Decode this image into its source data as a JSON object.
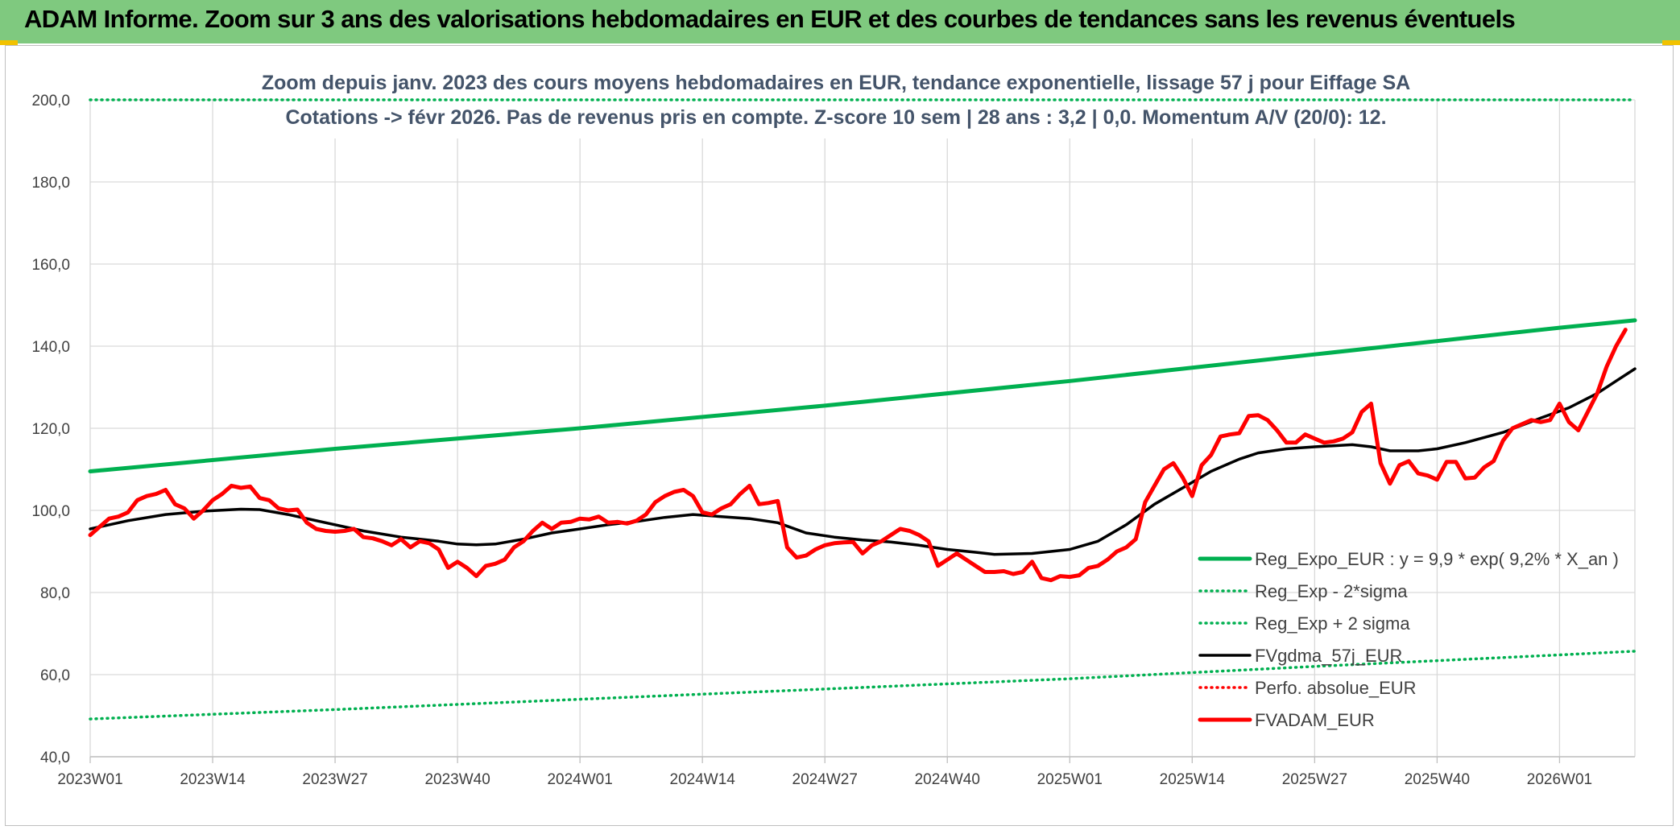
{
  "header": {
    "title": "ADAM Informe. Zoom sur 3 ans des valorisations hebdomadaires en EUR et des courbes de tendances sans les revenus éventuels"
  },
  "chart_data": {
    "type": "line",
    "subtitle_line1": "Zoom depuis janv. 2023 des cours moyens hebdomadaires en EUR, tendance exponentielle, lissage 57 j pour Eiffage SA",
    "subtitle_line2": "Cotations -> févr 2026. Pas de revenus pris en compte. Z-score 10 sem | 28 ans : 3,2 | 0,0. Momentum A/V (20/0): 12.",
    "ylim": [
      40,
      200
    ],
    "yticks": [
      "40,0",
      "60,0",
      "80,0",
      "100,0",
      "120,0",
      "140,0",
      "160,0",
      "180,0",
      "200,0"
    ],
    "x_start_week_index": 0,
    "x_end_week_index": 164,
    "xticks": [
      {
        "label": "2023W01",
        "week": 0
      },
      {
        "label": "2023W14",
        "week": 13
      },
      {
        "label": "2023W27",
        "week": 26
      },
      {
        "label": "2023W40",
        "week": 39
      },
      {
        "label": "2024W01",
        "week": 52
      },
      {
        "label": "2024W14",
        "week": 65
      },
      {
        "label": "2024W27",
        "week": 78
      },
      {
        "label": "2024W40",
        "week": 91
      },
      {
        "label": "2025W01",
        "week": 104
      },
      {
        "label": "2025W14",
        "week": 117
      },
      {
        "label": "2025W27",
        "week": 130
      },
      {
        "label": "2025W40",
        "week": 143
      },
      {
        "label": "2026W01",
        "week": 156
      }
    ],
    "legend_position": "bottom-right",
    "series": [
      {
        "name": "Reg_Expo_EUR : y = 9,9 * exp( 9,2% *  X_an )",
        "style": "solid-thick",
        "color": "#00b050",
        "points": [
          [
            0,
            109.5
          ],
          [
            26,
            115.0
          ],
          [
            52,
            120.0
          ],
          [
            78,
            125.5
          ],
          [
            104,
            131.5
          ],
          [
            130,
            138.0
          ],
          [
            156,
            144.5
          ],
          [
            164,
            146.3
          ]
        ]
      },
      {
        "name": "Reg_Exp - 2*sigma",
        "style": "dotted",
        "color": "#00b050",
        "points": [
          [
            0,
            49.2
          ],
          [
            26,
            51.5
          ],
          [
            52,
            54.0
          ],
          [
            78,
            56.5
          ],
          [
            104,
            59.0
          ],
          [
            130,
            62.0
          ],
          [
            156,
            64.8
          ],
          [
            164,
            65.7
          ]
        ]
      },
      {
        "name": "Reg_Exp + 2 sigma",
        "style": "dotted",
        "color": "#00b050",
        "points": [
          [
            0,
            200.0
          ],
          [
            164,
            200.0
          ]
        ]
      },
      {
        "name": "FVgdma_57j_EUR",
        "style": "solid",
        "color": "#000000",
        "points": [
          [
            0,
            95.5
          ],
          [
            4,
            97.5
          ],
          [
            8,
            99.0
          ],
          [
            12,
            99.8
          ],
          [
            16,
            100.3
          ],
          [
            18,
            100.2
          ],
          [
            21,
            99.0
          ],
          [
            25,
            97.0
          ],
          [
            29,
            95.0
          ],
          [
            33,
            93.5
          ],
          [
            37,
            92.5
          ],
          [
            39,
            91.8
          ],
          [
            41,
            91.6
          ],
          [
            43,
            91.8
          ],
          [
            46,
            93.0
          ],
          [
            49,
            94.5
          ],
          [
            52,
            95.5
          ],
          [
            55,
            96.5
          ],
          [
            58,
            97.3
          ],
          [
            61,
            98.3
          ],
          [
            64,
            99.0
          ],
          [
            67,
            98.5
          ],
          [
            70,
            98.0
          ],
          [
            73,
            97.0
          ],
          [
            76,
            94.5
          ],
          [
            79,
            93.5
          ],
          [
            82,
            92.8
          ],
          [
            85,
            92.3
          ],
          [
            88,
            91.5
          ],
          [
            91,
            90.5
          ],
          [
            94,
            89.8
          ],
          [
            96,
            89.3
          ],
          [
            100,
            89.5
          ],
          [
            104,
            90.5
          ],
          [
            107,
            92.5
          ],
          [
            110,
            96.5
          ],
          [
            113,
            101.5
          ],
          [
            116,
            105.5
          ],
          [
            119,
            109.5
          ],
          [
            122,
            112.5
          ],
          [
            124,
            114.0
          ],
          [
            127,
            115.0
          ],
          [
            130,
            115.5
          ],
          [
            134,
            116.0
          ],
          [
            136,
            115.5
          ],
          [
            138,
            114.5
          ],
          [
            141,
            114.5
          ],
          [
            143,
            115.0
          ],
          [
            146,
            116.5
          ],
          [
            150,
            119.0
          ],
          [
            154,
            122.5
          ],
          [
            157,
            125.0
          ],
          [
            160,
            128.5
          ],
          [
            162,
            131.5
          ],
          [
            164,
            134.5
          ]
        ]
      },
      {
        "name": "Perfo. absolue_EUR",
        "style": "dotted",
        "color": "#ff0000",
        "points": []
      },
      {
        "name": "FVADAM_EUR",
        "style": "solid-thick",
        "color": "#ff0000",
        "points": [
          [
            0,
            94.0
          ],
          [
            1,
            96.0
          ],
          [
            2,
            98.0
          ],
          [
            3,
            98.5
          ],
          [
            4,
            99.5
          ],
          [
            5,
            102.5
          ],
          [
            6,
            103.5
          ],
          [
            7,
            104.0
          ],
          [
            8,
            105.0
          ],
          [
            9,
            101.5
          ],
          [
            10,
            100.5
          ],
          [
            11,
            98.0
          ],
          [
            12,
            100.0
          ],
          [
            13,
            102.5
          ],
          [
            14,
            104.0
          ],
          [
            15,
            106.0
          ],
          [
            16,
            105.5
          ],
          [
            17,
            105.8
          ],
          [
            18,
            103.0
          ],
          [
            19,
            102.5
          ],
          [
            20,
            100.5
          ],
          [
            21,
            100.0
          ],
          [
            22,
            100.2
          ],
          [
            23,
            97.0
          ],
          [
            24,
            95.5
          ],
          [
            25,
            95.0
          ],
          [
            26,
            94.8
          ],
          [
            27,
            95.0
          ],
          [
            28,
            95.5
          ],
          [
            29,
            93.5
          ],
          [
            30,
            93.2
          ],
          [
            31,
            92.5
          ],
          [
            32,
            91.5
          ],
          [
            33,
            93.0
          ],
          [
            34,
            91.0
          ],
          [
            35,
            92.5
          ],
          [
            36,
            92.0
          ],
          [
            37,
            90.5
          ],
          [
            38,
            86.0
          ],
          [
            39,
            87.5
          ],
          [
            40,
            86.0
          ],
          [
            41,
            84.0
          ],
          [
            42,
            86.5
          ],
          [
            43,
            87.0
          ],
          [
            44,
            88.0
          ],
          [
            45,
            91.0
          ],
          [
            46,
            92.5
          ],
          [
            47,
            95.0
          ],
          [
            48,
            97.0
          ],
          [
            49,
            95.5
          ],
          [
            50,
            97.0
          ],
          [
            51,
            97.2
          ],
          [
            52,
            98.0
          ],
          [
            53,
            97.8
          ],
          [
            54,
            98.5
          ],
          [
            55,
            97.0
          ],
          [
            56,
            97.2
          ],
          [
            57,
            96.8
          ],
          [
            58,
            97.5
          ],
          [
            59,
            99.0
          ],
          [
            60,
            102.0
          ],
          [
            61,
            103.5
          ],
          [
            62,
            104.5
          ],
          [
            63,
            105.0
          ],
          [
            64,
            103.5
          ],
          [
            65,
            99.5
          ],
          [
            66,
            99.0
          ],
          [
            67,
            100.5
          ],
          [
            68,
            101.5
          ],
          [
            69,
            104.0
          ],
          [
            70,
            106.0
          ],
          [
            71,
            101.5
          ],
          [
            72,
            101.8
          ],
          [
            73,
            102.3
          ],
          [
            74,
            91.0
          ],
          [
            75,
            88.5
          ],
          [
            76,
            89.0
          ],
          [
            77,
            90.5
          ],
          [
            78,
            91.5
          ],
          [
            79,
            92.0
          ],
          [
            80,
            92.2
          ],
          [
            81,
            92.3
          ],
          [
            82,
            89.5
          ],
          [
            83,
            91.5
          ],
          [
            84,
            92.5
          ],
          [
            85,
            94.0
          ],
          [
            86,
            95.5
          ],
          [
            87,
            95.0
          ],
          [
            88,
            94.0
          ],
          [
            89,
            92.5
          ],
          [
            90,
            86.5
          ],
          [
            91,
            88.0
          ],
          [
            92,
            89.5
          ],
          [
            93,
            88.0
          ],
          [
            94,
            86.5
          ],
          [
            95,
            85.0
          ],
          [
            96,
            85.0
          ],
          [
            97,
            85.2
          ],
          [
            98,
            84.5
          ],
          [
            99,
            85.0
          ],
          [
            100,
            87.5
          ],
          [
            101,
            83.5
          ],
          [
            102,
            83.0
          ],
          [
            103,
            84.0
          ],
          [
            104,
            83.8
          ],
          [
            105,
            84.2
          ],
          [
            106,
            86.0
          ],
          [
            107,
            86.5
          ],
          [
            108,
            88.0
          ],
          [
            109,
            90.0
          ],
          [
            110,
            91.0
          ],
          [
            111,
            93.0
          ],
          [
            112,
            102.0
          ],
          [
            113,
            106.0
          ],
          [
            114,
            110.0
          ],
          [
            115,
            111.5
          ],
          [
            116,
            108.0
          ],
          [
            117,
            103.5
          ],
          [
            118,
            111.0
          ],
          [
            119,
            113.5
          ],
          [
            120,
            118.0
          ],
          [
            121,
            118.5
          ],
          [
            122,
            118.8
          ],
          [
            123,
            123.0
          ],
          [
            124,
            123.2
          ],
          [
            125,
            122.0
          ],
          [
            126,
            119.5
          ],
          [
            127,
            116.5
          ],
          [
            128,
            116.5
          ],
          [
            129,
            118.5
          ],
          [
            130,
            117.5
          ],
          [
            131,
            116.5
          ],
          [
            132,
            116.8
          ],
          [
            133,
            117.5
          ],
          [
            134,
            119.0
          ],
          [
            135,
            124.0
          ],
          [
            136,
            126.0
          ],
          [
            137,
            111.5
          ],
          [
            138,
            106.5
          ],
          [
            139,
            111.0
          ],
          [
            140,
            112.0
          ],
          [
            141,
            109.0
          ],
          [
            142,
            108.5
          ],
          [
            143,
            107.5
          ],
          [
            144,
            111.8
          ],
          [
            145,
            111.8
          ],
          [
            146,
            107.8
          ],
          [
            147,
            108.0
          ],
          [
            148,
            110.5
          ],
          [
            149,
            112.0
          ],
          [
            150,
            117.0
          ],
          [
            151,
            120.0
          ],
          [
            152,
            121.0
          ],
          [
            153,
            122.0
          ],
          [
            154,
            121.5
          ],
          [
            155,
            122.0
          ],
          [
            156,
            126.0
          ],
          [
            157,
            121.5
          ],
          [
            158,
            119.5
          ],
          [
            159,
            124.0
          ],
          [
            160,
            128.5
          ],
          [
            161,
            135.0
          ],
          [
            162,
            140.0
          ],
          [
            163,
            144.0
          ]
        ]
      }
    ]
  }
}
